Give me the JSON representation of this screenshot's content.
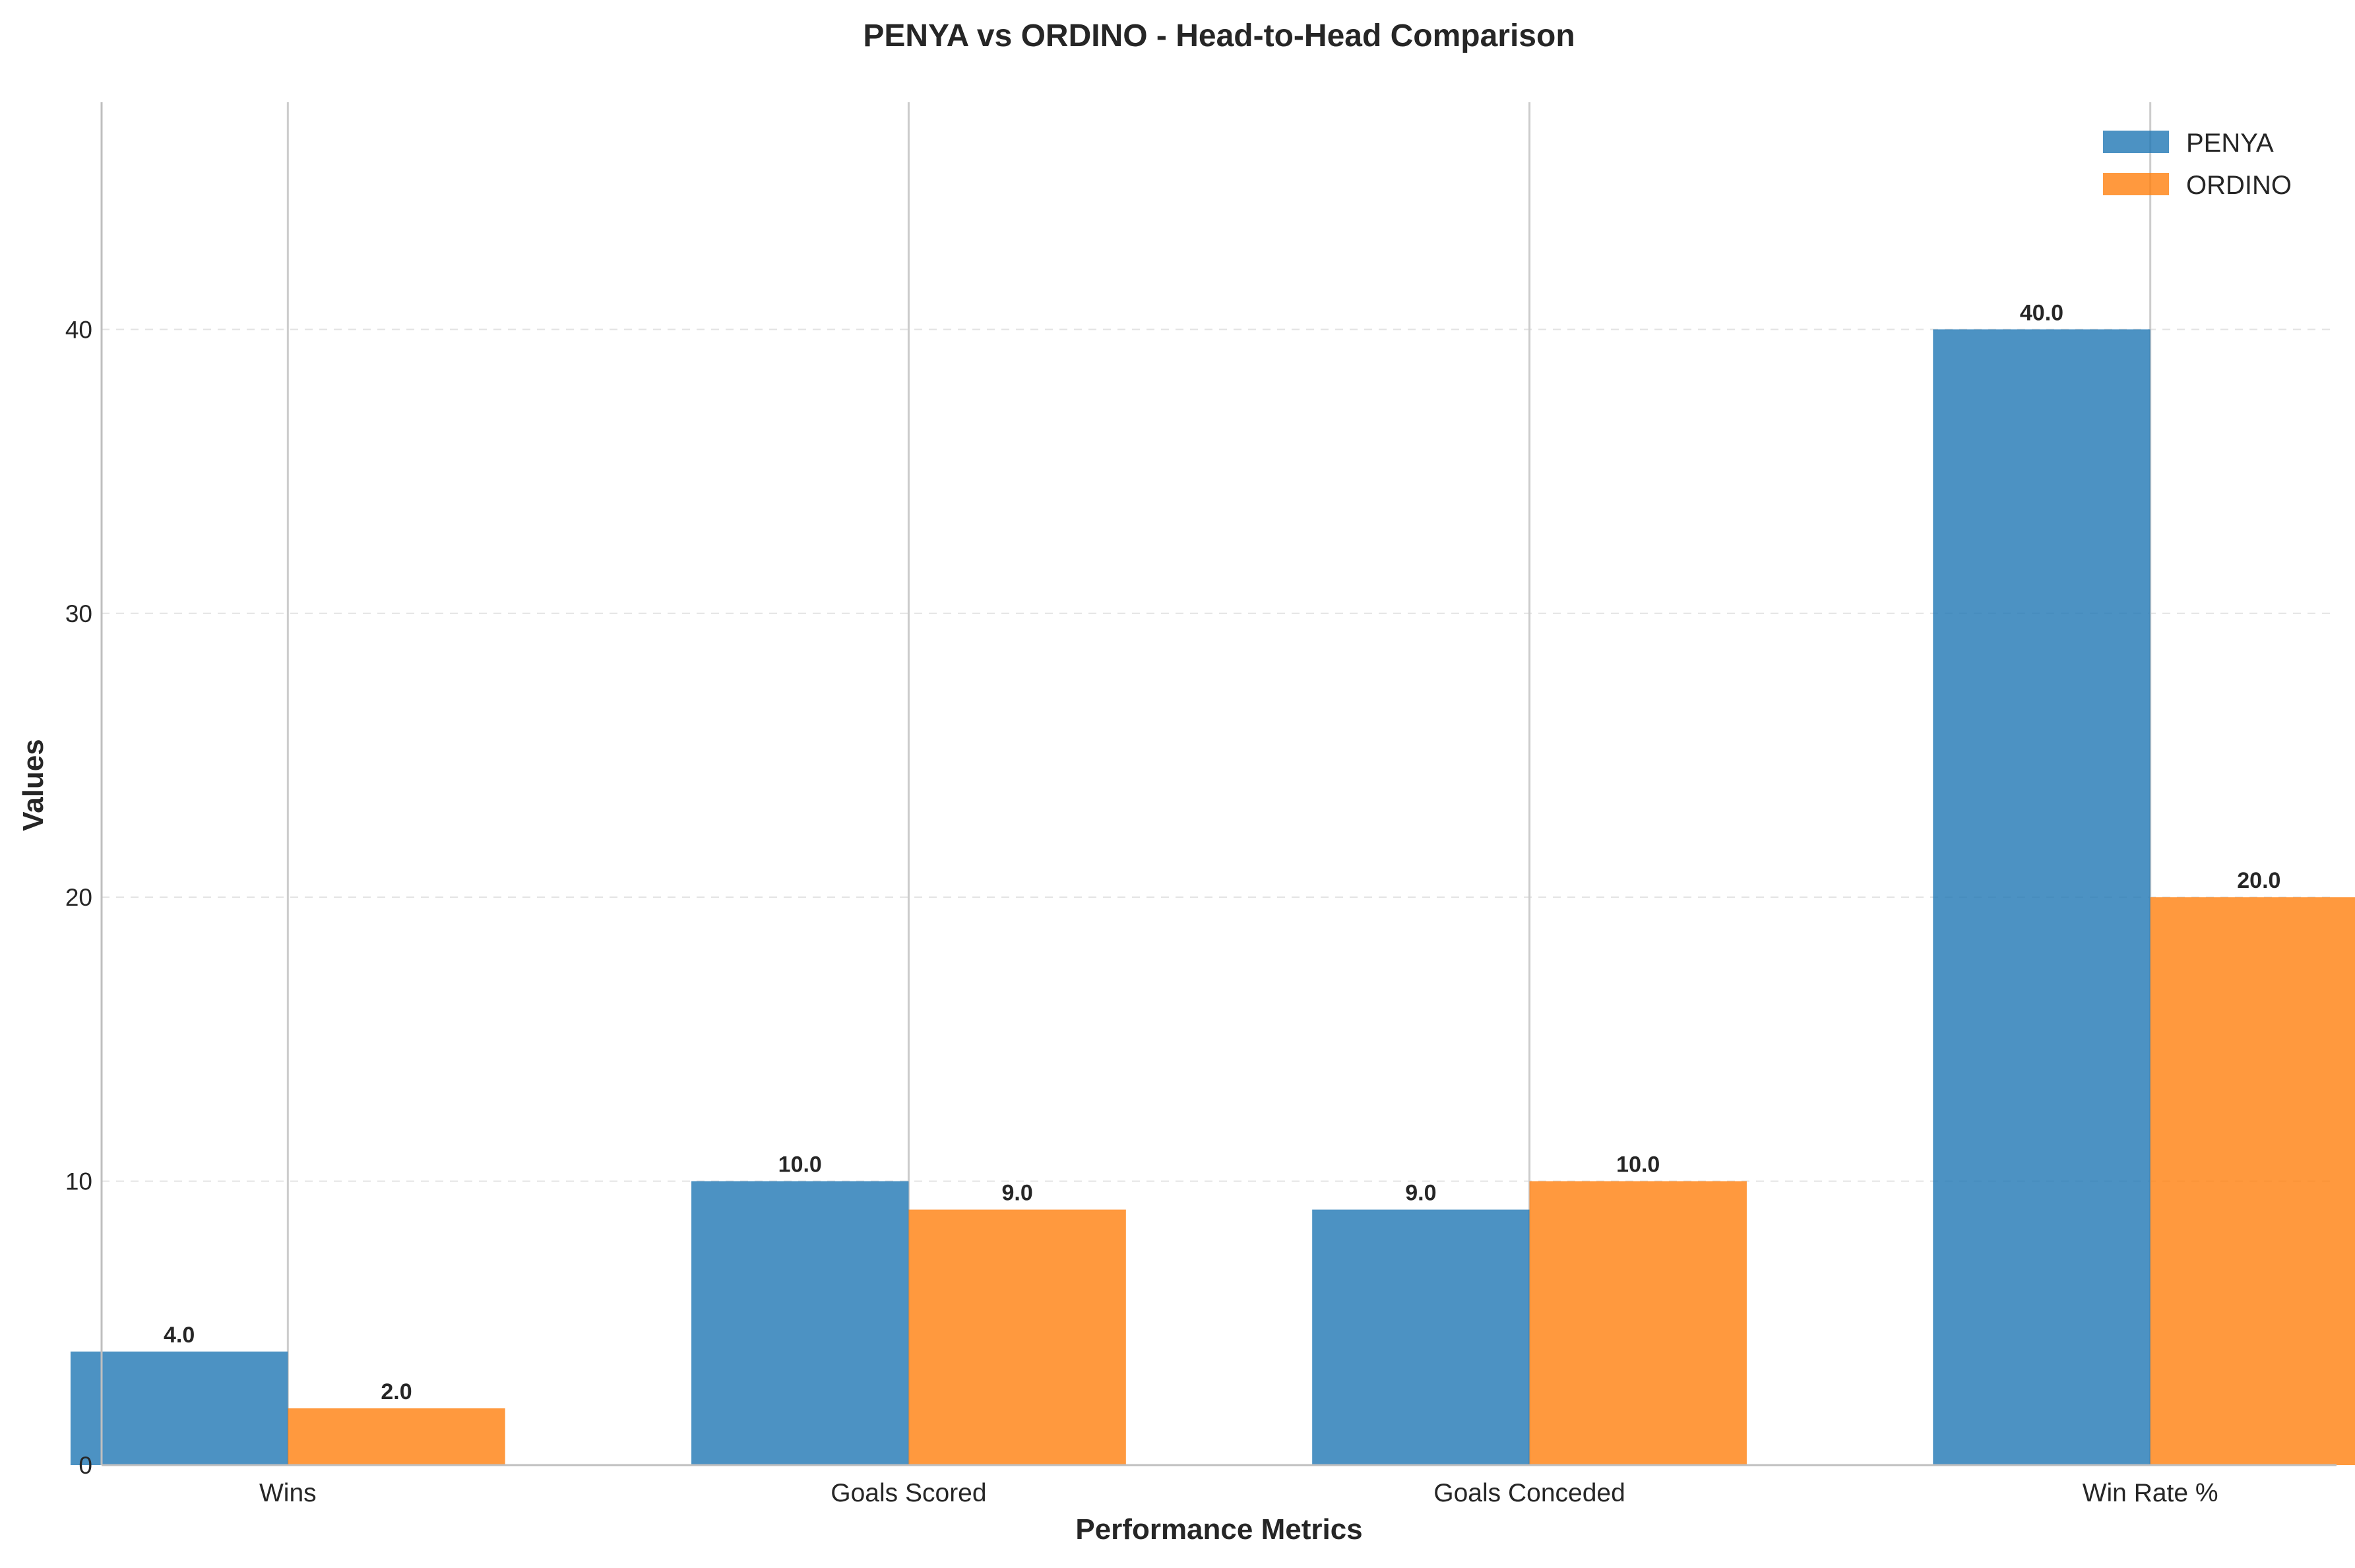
{
  "chart_data": {
    "type": "bar",
    "title": "PENYA vs ORDINO - Head-to-Head Comparison",
    "xlabel": "Performance Metrics",
    "ylabel": "Values",
    "categories": [
      "Wins",
      "Goals Scored",
      "Goals Conceded",
      "Win Rate %"
    ],
    "series": [
      {
        "name": "PENYA",
        "values": [
          4.0,
          10.0,
          9.0,
          40.0
        ],
        "color": "#1f77b4",
        "labels": [
          "4.0",
          "10.0",
          "9.0",
          "40.0"
        ]
      },
      {
        "name": "ORDINO",
        "values": [
          2.0,
          9.0,
          10.0,
          20.0
        ],
        "color": "#ff7f0e",
        "labels": [
          "2.0",
          "9.0",
          "10.0",
          "20.0"
        ]
      }
    ],
    "ylim": [
      0,
      48
    ],
    "yticks": [
      0,
      10,
      20,
      30,
      40
    ],
    "ytick_labels": [
      "0",
      "10",
      "20",
      "30",
      "40"
    ],
    "grid": "y-axis dashed, vertical lines at categories",
    "legend_position": "top-right"
  }
}
